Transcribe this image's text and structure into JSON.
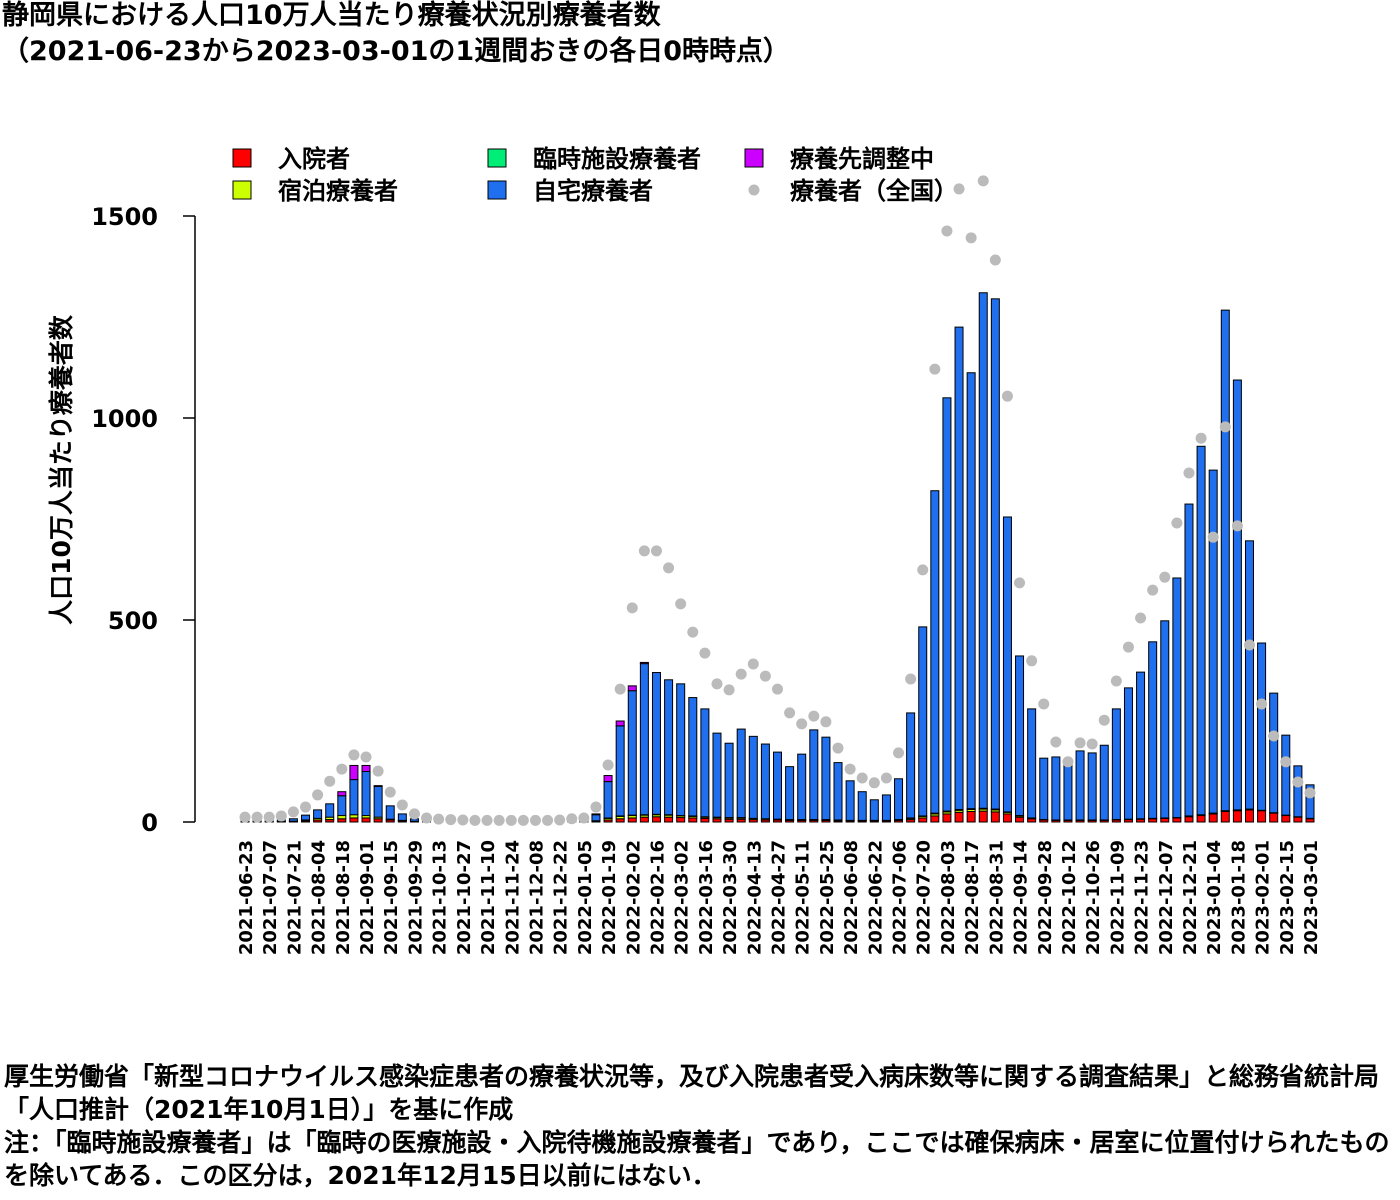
{
  "chart_data": {
    "type": "bar",
    "stacked": true,
    "title": "静岡県における人口10万人当たり療養状況別療養者数",
    "subtitle": "（2021-06-23から2023-03-01の1週間おきの各日0時時点）",
    "y_label": "人口10万人当たり療養者数",
    "ylim": [
      0,
      1500
    ],
    "yticks": [
      0,
      500,
      1000,
      1500
    ],
    "legend": "top",
    "categories": [
      "2021-06-23",
      null,
      "2021-07-07",
      null,
      "2021-07-21",
      null,
      "2021-08-04",
      null,
      "2021-08-18",
      null,
      "2021-09-01",
      null,
      "2021-09-15",
      null,
      "2021-09-29",
      null,
      "2021-10-13",
      null,
      "2021-10-27",
      null,
      "2021-11-10",
      null,
      "2021-11-24",
      null,
      "2021-12-08",
      null,
      "2021-12-22",
      null,
      "2022-01-05",
      null,
      "2022-01-19",
      null,
      "2022-02-02",
      null,
      "2022-02-16",
      null,
      "2022-03-02",
      null,
      "2022-03-16",
      null,
      "2022-03-30",
      null,
      "2022-04-13",
      null,
      "2022-04-27",
      null,
      "2022-05-11",
      null,
      "2022-05-25",
      null,
      "2022-06-08",
      null,
      "2022-06-22",
      null,
      "2022-07-06",
      null,
      "2022-07-20",
      null,
      "2022-08-03",
      null,
      "2022-08-17",
      null,
      "2022-08-31",
      null,
      "2022-09-14",
      null,
      "2022-09-28",
      null,
      "2022-10-12",
      null,
      "2022-10-26",
      null,
      "2022-11-09",
      null,
      "2022-11-23",
      null,
      "2022-12-07",
      null,
      "2022-12-21",
      null,
      "2023-01-04",
      null,
      "2023-01-18",
      null,
      "2023-02-01",
      null,
      "2023-02-15",
      null,
      "2023-03-01"
    ],
    "series": [
      {
        "name": "入院者",
        "color": "#ff0000",
        "type": "bar",
        "values": [
          0,
          1,
          1,
          1,
          1,
          3,
          5,
          6,
          8,
          10,
          10,
          8,
          5,
          3,
          2,
          1,
          1,
          1,
          1,
          1,
          1,
          1,
          1,
          1,
          1,
          1,
          1,
          1,
          1,
          2,
          5,
          8,
          10,
          12,
          13,
          12,
          11,
          10,
          9,
          8,
          7,
          7,
          6,
          5,
          5,
          4,
          4,
          4,
          4,
          3,
          3,
          3,
          3,
          3,
          4,
          6,
          10,
          15,
          20,
          24,
          26,
          27,
          25,
          20,
          12,
          8,
          5,
          4,
          4,
          4,
          4,
          4,
          5,
          6,
          7,
          8,
          9,
          10,
          13,
          16,
          20,
          26,
          28,
          30,
          28,
          22,
          16,
          12,
          8
        ]
      },
      {
        "name": "宿泊療養者",
        "color": "#ccff00",
        "type": "bar",
        "values": [
          0,
          0,
          0,
          0,
          1,
          2,
          4,
          6,
          8,
          8,
          6,
          4,
          2,
          1,
          0,
          0,
          0,
          0,
          0,
          0,
          0,
          0,
          0,
          0,
          0,
          0,
          0,
          0,
          0,
          1,
          4,
          6,
          6,
          5,
          5,
          5,
          4,
          4,
          3,
          3,
          3,
          3,
          3,
          3,
          2,
          2,
          2,
          2,
          2,
          2,
          1,
          1,
          1,
          1,
          2,
          3,
          4,
          5,
          5,
          5,
          5,
          5,
          5,
          4,
          3,
          2,
          1,
          1,
          1,
          1,
          1,
          1,
          1,
          1,
          1,
          1,
          1,
          1,
          2,
          2,
          2,
          2,
          2,
          2,
          1,
          1,
          1,
          1,
          1
        ]
      },
      {
        "name": "臨時施設療養者",
        "color": "#00ee77",
        "type": "bar",
        "values": [
          0,
          0,
          0,
          0,
          0,
          0,
          0,
          0,
          0,
          0,
          0,
          0,
          0,
          0,
          0,
          0,
          0,
          0,
          0,
          0,
          0,
          0,
          0,
          0,
          0,
          0,
          0,
          0,
          0,
          0,
          1,
          1,
          1,
          1,
          1,
          1,
          1,
          1,
          1,
          1,
          1,
          1,
          0,
          0,
          0,
          0,
          0,
          0,
          0,
          0,
          0,
          0,
          0,
          0,
          0,
          1,
          1,
          2,
          2,
          2,
          2,
          2,
          2,
          1,
          1,
          0,
          0,
          0,
          0,
          0,
          0,
          0,
          0,
          0,
          0,
          0,
          0,
          0,
          0,
          0,
          0,
          0,
          0,
          0,
          0,
          0,
          0,
          0,
          0
        ]
      },
      {
        "name": "自宅療養者",
        "color": "#1f6fef",
        "type": "bar",
        "values": [
          2,
          2,
          2,
          4,
          6,
          12,
          21,
          33,
          49,
          87,
          109,
          76,
          33,
          16,
          6,
          4,
          3,
          2,
          1,
          1,
          1,
          0,
          0,
          0,
          0,
          0,
          0,
          1,
          2,
          15,
          90,
          223,
          308,
          374,
          351,
          334,
          326,
          293,
          267,
          208,
          184,
          219,
          203,
          185,
          166,
          131,
          162,
          222,
          204,
          142,
          98,
          71,
          51,
          63,
          101,
          260,
          468,
          798,
          1023,
          1194,
          1079,
          1276,
          1263,
          730,
          395,
          270,
          152,
          156,
          141,
          171,
          166,
          185,
          274,
          325,
          363,
          437,
          488,
          593,
          772,
          912,
          849,
          1239,
          1064,
          664,
          414,
          296,
          198,
          126,
          83
        ]
      },
      {
        "name": "療養先調整中",
        "color": "#cc00ff",
        "type": "bar",
        "values": [
          0,
          0,
          0,
          0,
          0,
          0,
          0,
          0,
          10,
          35,
          15,
          2,
          0,
          0,
          0,
          0,
          0,
          0,
          0,
          0,
          0,
          0,
          0,
          0,
          0,
          0,
          0,
          0,
          0,
          2,
          15,
          12,
          12,
          3,
          0,
          0,
          0,
          0,
          0,
          0,
          0,
          0,
          0,
          0,
          0,
          0,
          0,
          0,
          0,
          0,
          0,
          0,
          0,
          0,
          0,
          0,
          0,
          0,
          0,
          0,
          0,
          0,
          0,
          0,
          0,
          0,
          0,
          0,
          0,
          0,
          0,
          0,
          0,
          0,
          0,
          0,
          0,
          0,
          0,
          0,
          0,
          0,
          0,
          0,
          0,
          0,
          0,
          0,
          0
        ]
      },
      {
        "name": "療養者（全国）",
        "color": "#bbbbbb",
        "type": "scatter",
        "values": [
          12,
          12,
          12,
          15,
          25,
          37,
          67,
          101,
          131,
          166,
          161,
          126,
          74,
          42,
          20,
          10,
          7,
          6,
          5,
          4,
          4,
          4,
          4,
          4,
          4,
          4,
          5,
          8,
          10,
          37,
          141,
          329,
          530,
          671,
          671,
          629,
          540,
          470,
          418,
          342,
          327,
          366,
          391,
          361,
          329,
          270,
          243,
          262,
          248,
          183,
          131,
          109,
          97,
          109,
          171,
          354,
          624,
          1121,
          1463,
          1567,
          1446,
          1587,
          1391,
          1054,
          592,
          399,
          292,
          198,
          149,
          196,
          193,
          252,
          349,
          433,
          505,
          574,
          606,
          740,
          864,
          950,
          705,
          978,
          733,
          438,
          292,
          213,
          149,
          99,
          72
        ]
      }
    ]
  },
  "notes": [
    "厚生労働省「新型コロナウイルス感染症患者の療養状況等，及び入院患者受入病床数等に関する調査結果」と総務省統計局「人口推計（2021年10月1日）」を基に作成",
    "注：「臨時施設療養者」は「臨時の医療施設・入院待機施設療養者」であり，ここでは確保病床・居室に位置付けられたものを除いてある．この区分は，2021年12月15日以前にはない．"
  ]
}
